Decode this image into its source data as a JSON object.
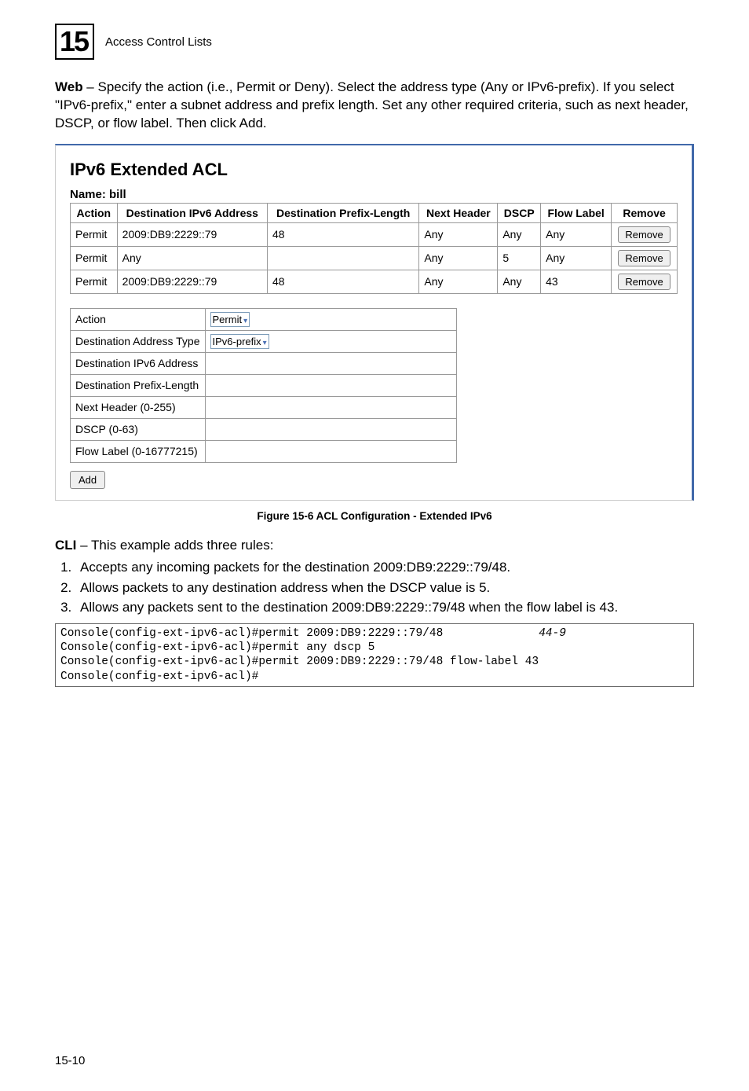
{
  "header": {
    "chapter_number": "15",
    "chapter_title": "Access Control Lists"
  },
  "intro_paragraph_bold": "Web",
  "intro_paragraph": " – Specify the action (i.e., Permit or Deny). Select the address type (Any or IPv6-prefix). If you select \"IPv6-prefix,\" enter a subnet address and prefix length. Set any other required criteria, such as next header, DSCP, or flow label. Then click Add.",
  "screenshot": {
    "panel_title": "IPv6 Extended ACL",
    "acl_name_label": "Name: bill",
    "columns": [
      "Action",
      "Destination IPv6 Address",
      "Destination Prefix-Length",
      "Next Header",
      "DSCP",
      "Flow Label",
      "Remove"
    ],
    "rows": [
      {
        "action": "Permit",
        "dest_addr": "2009:DB9:2229::79",
        "prefix_len": "48",
        "next_header": "Any",
        "dscp": "Any",
        "flow_label": "Any"
      },
      {
        "action": "Permit",
        "dest_addr": "Any",
        "prefix_len": "",
        "next_header": "Any",
        "dscp": "5",
        "flow_label": "Any"
      },
      {
        "action": "Permit",
        "dest_addr": "2009:DB9:2229::79",
        "prefix_len": "48",
        "next_header": "Any",
        "dscp": "Any",
        "flow_label": "43"
      }
    ],
    "remove_label": "Remove",
    "form": {
      "action_label": "Action",
      "action_value": "Permit",
      "dest_type_label": "Destination Address Type",
      "dest_type_value": "IPv6-prefix",
      "dest_addr_label": "Destination IPv6 Address",
      "prefix_len_label": "Destination Prefix-Length",
      "next_header_label": "Next Header (0-255)",
      "dscp_label": "DSCP (0-63)",
      "flow_label_label": "Flow Label (0-16777215)"
    },
    "add_label": "Add"
  },
  "figure_caption": "Figure 15-6  ACL Configuration - Extended IPv6",
  "cli_bold": "CLI",
  "cli_intro": " – This example adds three rules:",
  "cli_items": [
    "Accepts any incoming packets for the destination 2009:DB9:2229::79/48.",
    "Allows packets to any destination address when the DSCP value is 5.",
    "Allows any packets sent to the destination 2009:DB9:2229::79/48 when the flow label is 43."
  ],
  "code_ref": "44-9",
  "code_lines": [
    "Console(config-ext-ipv6-acl)#permit 2009:DB9:2229::79/48",
    "Console(config-ext-ipv6-acl)#permit any dscp 5",
    "Console(config-ext-ipv6-acl)#permit 2009:DB9:2229::79/48 flow-label 43",
    "Console(config-ext-ipv6-acl)#"
  ],
  "page_number": "15-10"
}
